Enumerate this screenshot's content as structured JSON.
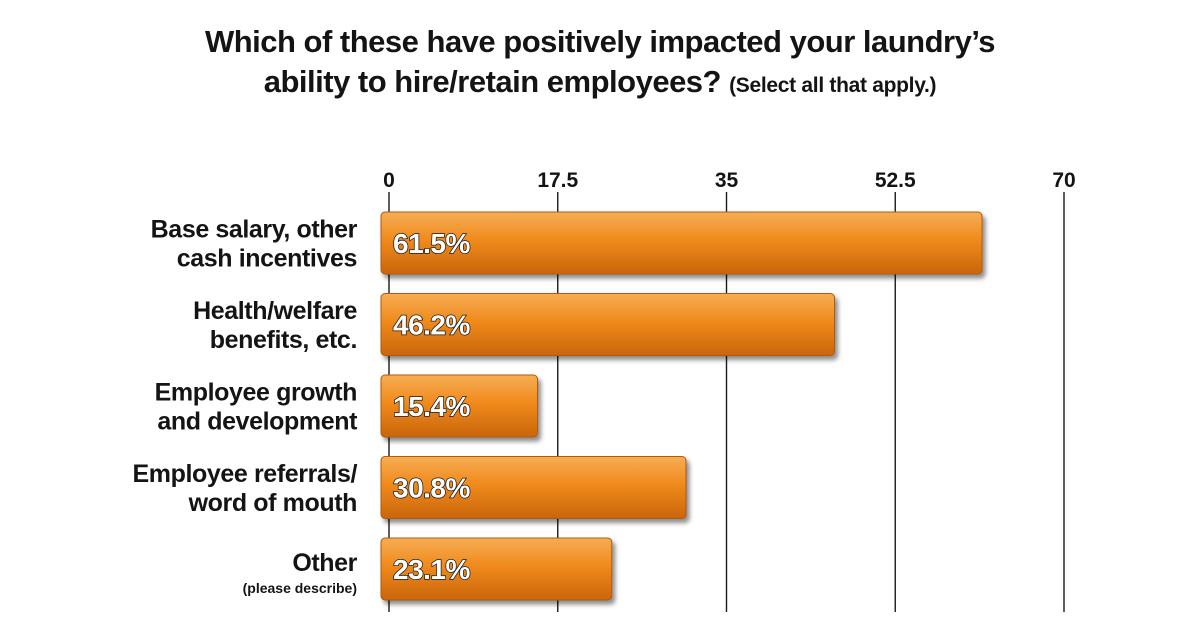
{
  "chart_data": {
    "type": "bar",
    "orientation": "horizontal",
    "title": "Which of these have positively impacted your laundry’s ability to hire/retain employees?",
    "title_lines": [
      "Which of these have positively impacted your laundry’s",
      "ability to hire/retain employees?"
    ],
    "title_note": "(Select all that apply.)",
    "categories": [
      {
        "lines": [
          "Base salary, other",
          "cash incentives"
        ],
        "sub": ""
      },
      {
        "lines": [
          "Health/welfare",
          "benefits, etc."
        ],
        "sub": ""
      },
      {
        "lines": [
          "Employee growth",
          "and development"
        ],
        "sub": ""
      },
      {
        "lines": [
          "Employee referrals/",
          "word of mouth"
        ],
        "sub": ""
      },
      {
        "lines": [
          "Other"
        ],
        "sub": "(please describe)"
      }
    ],
    "values": [
      61.5,
      46.2,
      15.4,
      30.8,
      23.1
    ],
    "value_labels": [
      "61.5%",
      "46.2%",
      "15.4%",
      "30.8%",
      "23.1%"
    ],
    "xlim": [
      0,
      70
    ],
    "ticks": [
      0,
      17.5,
      35,
      52.5,
      70
    ],
    "tick_labels": [
      "0",
      "17.5",
      "35",
      "52.5",
      "70"
    ],
    "axis_position": "top",
    "grid": true,
    "bar_color": "#f08a1c"
  }
}
